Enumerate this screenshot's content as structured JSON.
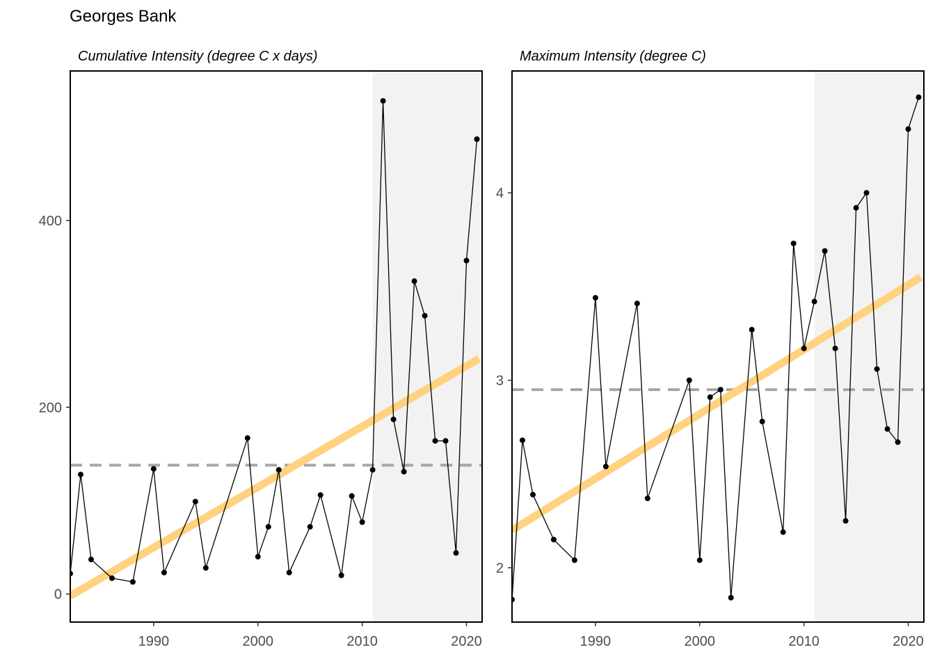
{
  "figure": {
    "title": "Georges Bank"
  },
  "colors": {
    "shade": "#f2f2f2",
    "trend": "#ffd27f",
    "mean_line": "#a6a6a6",
    "series": "#000000",
    "axis_text": "#4d4d4d"
  },
  "chart_data": [
    {
      "type": "line",
      "title": "Cumulative Intensity (degree C x days)",
      "xlabel": "",
      "ylabel": "",
      "xlim": [
        1982,
        2021.5
      ],
      "ylim": [
        -30,
        560
      ],
      "xticks": [
        1990,
        2000,
        2010,
        2020
      ],
      "yticks": [
        0,
        200,
        400
      ],
      "shaded_region": [
        2011,
        2021.5
      ],
      "mean_line": 138,
      "trend": {
        "x": [
          1982,
          2021.2
        ],
        "y": [
          -2,
          252
        ]
      },
      "x": [
        1982,
        1983,
        1984,
        1986,
        1988,
        1990,
        1991,
        1994,
        1995,
        1999,
        2000,
        2001,
        2002,
        2003,
        2005,
        2006,
        2008,
        2009,
        2010,
        2011,
        2012,
        2013,
        2014,
        2015,
        2016,
        2017,
        2018,
        2019,
        2020,
        2021
      ],
      "y": [
        22,
        128,
        37,
        17,
        13,
        134,
        23,
        99,
        28,
        167,
        40,
        72,
        133,
        23,
        72,
        106,
        20,
        105,
        77,
        133,
        528,
        187,
        131,
        335,
        298,
        164,
        164,
        44,
        357,
        487
      ]
    },
    {
      "type": "line",
      "title": "Maximum Intensity (degree C)",
      "xlabel": "",
      "ylabel": "",
      "xlim": [
        1982,
        2021.5
      ],
      "ylim": [
        1.71,
        4.65
      ],
      "xticks": [
        1990,
        2000,
        2010,
        2020
      ],
      "yticks": [
        2,
        3,
        4
      ],
      "shaded_region": [
        2011,
        2021.5
      ],
      "mean_line": 2.95,
      "trend": {
        "x": [
          1982,
          2021.2
        ],
        "y": [
          2.2,
          3.55
        ]
      },
      "x": [
        1982,
        1983,
        1984,
        1986,
        1988,
        1990,
        1991,
        1994,
        1995,
        1999,
        2000,
        2001,
        2002,
        2003,
        2005,
        2006,
        2008,
        2009,
        2010,
        2011,
        2012,
        2013,
        2014,
        2015,
        2016,
        2017,
        2018,
        2019,
        2020,
        2021
      ],
      "y": [
        1.83,
        2.68,
        2.39,
        2.15,
        2.04,
        3.44,
        2.54,
        3.41,
        2.37,
        3.0,
        2.04,
        2.91,
        2.95,
        1.84,
        3.27,
        2.78,
        2.19,
        3.73,
        3.17,
        3.42,
        3.69,
        3.17,
        2.25,
        3.92,
        4.0,
        3.06,
        2.74,
        2.67,
        4.34,
        4.51
      ]
    }
  ]
}
